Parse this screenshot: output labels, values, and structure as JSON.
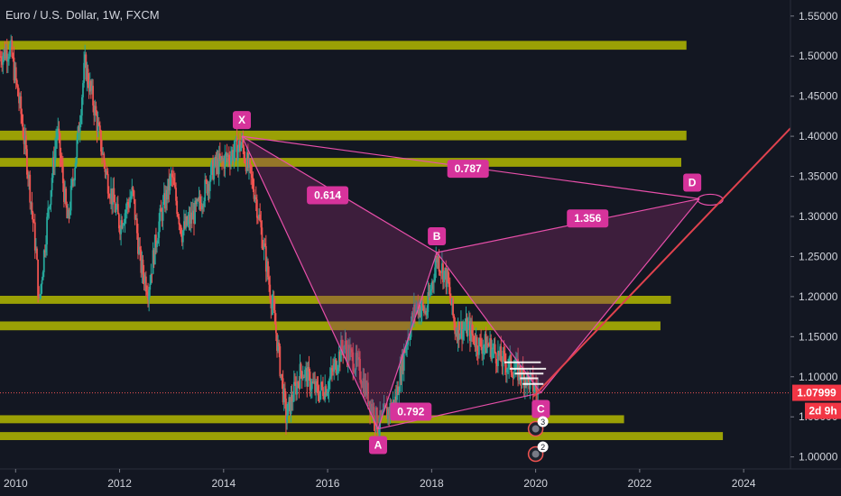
{
  "header": {
    "symbol": "Euro / U.S. Dollar",
    "interval": "1W",
    "exchange": "FXCM",
    "separator": ", "
  },
  "colors": {
    "background": "#131722",
    "zone": "#b3b800",
    "pattern_line": "#e84faa",
    "pattern_fill": "#8c2b6e",
    "label_bg": "#d6339b",
    "trendline": "#e0424e",
    "candle_up": "#26a69a",
    "candle_down": "#ef5350",
    "price_line": "#f05454",
    "current_price_bg": "#f23645",
    "countdown_bg": "#f23645",
    "marker_lines": "#ffffff"
  },
  "chart_data": {
    "type": "candlestick",
    "symbol": "Euro / U.S. Dollar",
    "interval": "1W",
    "source": "FXCM",
    "xlim": [
      2009.7,
      2024.9
    ],
    "ylim": [
      0.985,
      1.57
    ],
    "x_ticks": [
      2010,
      2012,
      2014,
      2016,
      2018,
      2020,
      2022,
      2024
    ],
    "x_tick_labels": [
      "2010",
      "2012",
      "2014",
      "2016",
      "2018",
      "2020",
      "2022",
      "2024"
    ],
    "y_ticks": [
      1.0,
      1.05,
      1.1,
      1.15,
      1.2,
      1.25,
      1.3,
      1.35,
      1.4,
      1.45,
      1.5,
      1.55
    ],
    "y_tick_labels": [
      "1.00000",
      "1.05000",
      "1.10000",
      "1.15000",
      "1.20000",
      "1.25000",
      "1.30000",
      "1.35000",
      "1.40000",
      "1.45000",
      "1.50000",
      "1.55000"
    ],
    "current_price": 1.07999,
    "current_price_label": "1.07999",
    "countdown": "2d 9h",
    "price_path": [
      [
        2009.7,
        1.5
      ],
      [
        2009.9,
        1.51
      ],
      [
        2010.1,
        1.43
      ],
      [
        2010.25,
        1.35
      ],
      [
        2010.4,
        1.25
      ],
      [
        2010.45,
        1.19
      ],
      [
        2010.6,
        1.29
      ],
      [
        2010.8,
        1.41
      ],
      [
        2011.0,
        1.29
      ],
      [
        2011.2,
        1.4
      ],
      [
        2011.33,
        1.49
      ],
      [
        2011.5,
        1.44
      ],
      [
        2011.75,
        1.35
      ],
      [
        2012.0,
        1.29
      ],
      [
        2012.25,
        1.33
      ],
      [
        2012.4,
        1.24
      ],
      [
        2012.55,
        1.21
      ],
      [
        2012.75,
        1.29
      ],
      [
        2013.0,
        1.35
      ],
      [
        2013.2,
        1.28
      ],
      [
        2013.5,
        1.31
      ],
      [
        2013.8,
        1.36
      ],
      [
        2014.0,
        1.37
      ],
      [
        2014.35,
        1.39
      ],
      [
        2014.6,
        1.33
      ],
      [
        2014.8,
        1.25
      ],
      [
        2015.0,
        1.16
      ],
      [
        2015.2,
        1.05
      ],
      [
        2015.5,
        1.11
      ],
      [
        2015.8,
        1.08
      ],
      [
        2016.0,
        1.09
      ],
      [
        2016.3,
        1.14
      ],
      [
        2016.6,
        1.11
      ],
      [
        2016.97,
        1.04
      ],
      [
        2017.3,
        1.07
      ],
      [
        2017.5,
        1.14
      ],
      [
        2017.7,
        1.19
      ],
      [
        2017.9,
        1.18
      ],
      [
        2018.1,
        1.25
      ],
      [
        2018.3,
        1.22
      ],
      [
        2018.45,
        1.16
      ],
      [
        2018.7,
        1.16
      ],
      [
        2018.9,
        1.14
      ],
      [
        2019.1,
        1.14
      ],
      [
        2019.35,
        1.12
      ],
      [
        2019.6,
        1.11
      ],
      [
        2019.8,
        1.1
      ],
      [
        2020.05,
        1.08
      ]
    ],
    "zones": [
      {
        "y1": 1.508,
        "y2": 1.519,
        "x_end": 2022.9
      },
      {
        "y1": 1.395,
        "y2": 1.407,
        "x_end": 2022.9
      },
      {
        "y1": 1.362,
        "y2": 1.373,
        "x_end": 2022.8
      },
      {
        "y1": 1.191,
        "y2": 1.201,
        "x_end": 2022.6
      },
      {
        "y1": 1.158,
        "y2": 1.169,
        "x_end": 2022.4
      },
      {
        "y1": 1.042,
        "y2": 1.052,
        "x_end": 2021.7
      },
      {
        "y1": 1.021,
        "y2": 1.031,
        "x_end": 2023.6
      }
    ],
    "harmonic_pattern": {
      "points": [
        {
          "name": "X",
          "x": 2014.35,
          "y": 1.4
        },
        {
          "name": "A",
          "x": 2016.97,
          "y": 1.035
        },
        {
          "name": "B",
          "x": 2018.1,
          "y": 1.255
        },
        {
          "name": "C",
          "x": 2020.1,
          "y": 1.08
        },
        {
          "name": "D",
          "x": 2023.15,
          "y": 1.322
        }
      ],
      "ratios": [
        {
          "value": "0.614",
          "x": 2016.0,
          "y": 1.3265
        },
        {
          "value": "0.787",
          "x": 2018.7,
          "y": 1.3595
        },
        {
          "value": "1.356",
          "x": 2021.0,
          "y": 1.2975
        },
        {
          "value": "0.792",
          "x": 2017.6,
          "y": 1.0565
        }
      ]
    },
    "trendline": {
      "x1": 2019.95,
      "y1": 1.075,
      "x2": 2024.9,
      "y2": 1.41
    },
    "signals": [
      {
        "label": "3",
        "x": 2020.0,
        "y": 1.035
      },
      {
        "label": "2",
        "x": 2020.0,
        "y": 1.0035
      }
    ]
  }
}
